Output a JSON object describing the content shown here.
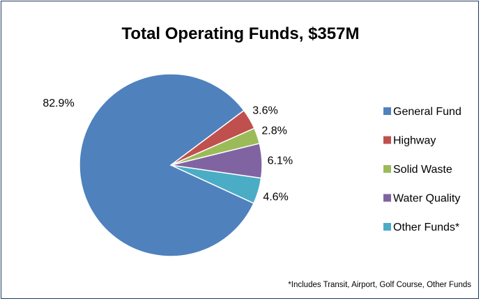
{
  "chart_data": {
    "type": "pie",
    "title": "Total Operating Funds, $357M",
    "categories": [
      "General Fund",
      "Highway",
      "Solid Waste",
      "Water Quality",
      "Other Funds*"
    ],
    "values": [
      82.9,
      3.6,
      2.8,
      6.1,
      4.6
    ],
    "labels": [
      "82.9%",
      "3.6%",
      "2.8%",
      "6.1%",
      "4.6%"
    ],
    "colors": [
      "#4f81bd",
      "#c0504d",
      "#9bbb59",
      "#8064a2",
      "#4bacc6"
    ],
    "legend": "right",
    "footnote": "*Includes Transit, Airport, Golf Course, Other Funds"
  }
}
